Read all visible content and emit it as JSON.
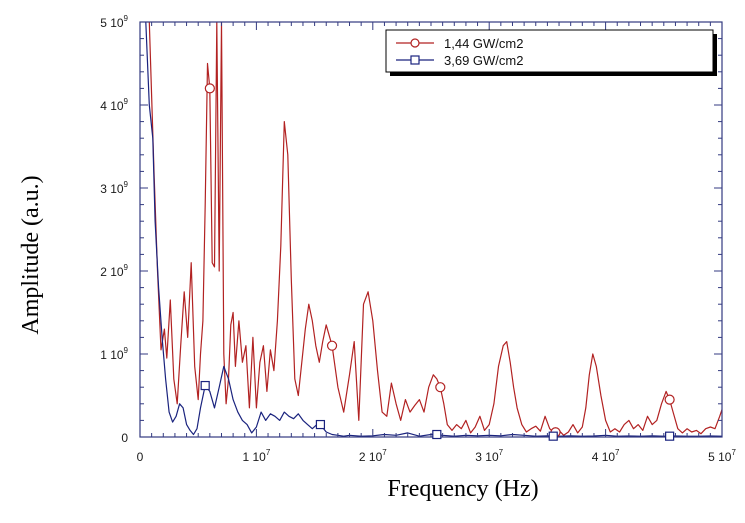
{
  "chart_data": {
    "type": "line",
    "xlabel": "Frequency (Hz)",
    "ylabel": "Amplitude  (a.u.)",
    "xlim": [
      0,
      50000000
    ],
    "ylim": [
      0,
      5000000000
    ],
    "x_ticks": [
      0,
      10000000,
      20000000,
      30000000,
      40000000,
      50000000
    ],
    "x_tick_labels": [
      {
        "base": "0",
        "exp": ""
      },
      {
        "base": "1 10",
        "exp": "7"
      },
      {
        "base": "2 10",
        "exp": "7"
      },
      {
        "base": "3 10",
        "exp": "7"
      },
      {
        "base": "4 10",
        "exp": "7"
      },
      {
        "base": "5 10",
        "exp": "7"
      }
    ],
    "y_ticks": [
      0,
      1000000000,
      2000000000,
      3000000000,
      4000000000,
      5000000000
    ],
    "y_tick_labels": [
      {
        "base": "0",
        "exp": ""
      },
      {
        "base": "1 10",
        "exp": "9"
      },
      {
        "base": "2 10",
        "exp": "9"
      },
      {
        "base": "3 10",
        "exp": "9"
      },
      {
        "base": "4 10",
        "exp": "9"
      },
      {
        "base": "5 10",
        "exp": "9"
      }
    ],
    "legend_position": "top-right",
    "grid": false,
    "series": [
      {
        "name": "1,44 GW/cm2",
        "color": "#b22222",
        "marker": "circle",
        "marker_x": [
          6000000,
          16500000,
          25800000,
          35700000,
          45500000
        ],
        "x": [
          800000,
          1200000,
          1500000,
          1800000,
          2100000,
          2300000,
          2600000,
          2900000,
          3200000,
          3500000,
          3800000,
          4100000,
          4400000,
          4700000,
          5000000,
          5200000,
          5400000,
          5600000,
          5800000,
          6000000,
          6200000,
          6400000,
          6600000,
          6800000,
          7000000,
          7200000,
          7400000,
          7600000,
          7800000,
          8000000,
          8200000,
          8500000,
          8800000,
          9100000,
          9400000,
          9700000,
          10000000,
          10300000,
          10600000,
          10900000,
          11200000,
          11500000,
          11800000,
          12100000,
          12400000,
          12700000,
          13000000,
          13300000,
          13600000,
          13900000,
          14200000,
          14500000,
          14800000,
          15100000,
          15400000,
          15700000,
          16000000,
          16500000,
          17000000,
          17500000,
          18000000,
          18400000,
          18800000,
          19200000,
          19600000,
          20000000,
          20400000,
          20800000,
          21200000,
          21600000,
          22000000,
          22400000,
          22800000,
          23200000,
          23600000,
          24000000,
          24400000,
          24800000,
          25200000,
          25500000,
          25800000,
          26100000,
          26400000,
          26800000,
          27200000,
          27600000,
          28000000,
          28400000,
          28800000,
          29200000,
          29600000,
          30000000,
          30400000,
          30800000,
          31200000,
          31500000,
          31800000,
          32100000,
          32400000,
          32800000,
          33200000,
          33600000,
          34000000,
          34400000,
          34800000,
          35200000,
          35600000,
          36000000,
          36400000,
          36800000,
          37200000,
          37600000,
          38000000,
          38300000,
          38600000,
          38900000,
          39200000,
          39600000,
          40000000,
          40400000,
          40800000,
          41200000,
          41600000,
          42000000,
          42400000,
          42800000,
          43200000,
          43600000,
          44000000,
          44400000,
          44800000,
          45200000,
          45500000,
          45800000,
          46200000,
          46600000,
          47000000,
          47400000,
          47800000,
          48200000,
          48600000,
          49000000,
          49400000,
          49800000,
          50000000
        ],
        "y": [
          5000000000,
          3200000000,
          2000000000,
          1050000000,
          1300000000,
          950000000,
          1650000000,
          700000000,
          400000000,
          1100000000,
          1750000000,
          1200000000,
          2100000000,
          850000000,
          450000000,
          1000000000,
          1400000000,
          2800000000,
          4500000000,
          4200000000,
          2100000000,
          2050000000,
          5000000000,
          2000000000,
          5000000000,
          1000000000,
          400000000,
          700000000,
          1350000000,
          1500000000,
          850000000,
          1400000000,
          900000000,
          1100000000,
          350000000,
          1200000000,
          350000000,
          900000000,
          1100000000,
          550000000,
          1050000000,
          800000000,
          1400000000,
          2300000000,
          3800000000,
          3400000000,
          1900000000,
          700000000,
          500000000,
          900000000,
          1300000000,
          1600000000,
          1400000000,
          1100000000,
          900000000,
          1150000000,
          1350000000,
          1100000000,
          600000000,
          300000000,
          750000000,
          1150000000,
          200000000,
          1600000000,
          1750000000,
          1400000000,
          800000000,
          300000000,
          250000000,
          650000000,
          400000000,
          200000000,
          450000000,
          300000000,
          380000000,
          450000000,
          300000000,
          600000000,
          750000000,
          700000000,
          600000000,
          400000000,
          150000000,
          80000000,
          150000000,
          100000000,
          200000000,
          50000000,
          120000000,
          250000000,
          80000000,
          150000000,
          400000000,
          850000000,
          1100000000,
          1150000000,
          900000000,
          600000000,
          350000000,
          150000000,
          60000000,
          100000000,
          130000000,
          70000000,
          250000000,
          100000000,
          50000000,
          80000000,
          20000000,
          60000000,
          150000000,
          50000000,
          120000000,
          350000000,
          750000000,
          1000000000,
          850000000,
          500000000,
          200000000,
          60000000,
          100000000,
          60000000,
          150000000,
          200000000,
          100000000,
          150000000,
          80000000,
          250000000,
          150000000,
          200000000,
          400000000,
          550000000,
          450000000,
          300000000,
          100000000,
          50000000,
          100000000,
          60000000,
          80000000,
          40000000,
          100000000,
          120000000,
          100000000,
          250000000,
          330000000
        ]
      },
      {
        "name": "3,69 GW/cm2",
        "color": "#1a237e",
        "marker": "square",
        "marker_x": [
          5600000,
          15500000,
          25500000,
          35500000,
          45500000
        ],
        "x": [
          500000,
          800000,
          1100000,
          1300000,
          1600000,
          1900000,
          2200000,
          2500000,
          2800000,
          3100000,
          3400000,
          3700000,
          4000000,
          4300000,
          4600000,
          4900000,
          5200000,
          5600000,
          6000000,
          6400000,
          6800000,
          7200000,
          7600000,
          8000000,
          8400000,
          8800000,
          9200000,
          9600000,
          10000000,
          10400000,
          10800000,
          11200000,
          11600000,
          12000000,
          12400000,
          12800000,
          13200000,
          13600000,
          14000000,
          14400000,
          14800000,
          15200000,
          15500000,
          16000000,
          16500000,
          17000000,
          17500000,
          18000000,
          19000000,
          20000000,
          21000000,
          22000000,
          23000000,
          24000000,
          25000000,
          25500000,
          26000000,
          27000000,
          28000000,
          29000000,
          30000000,
          31000000,
          32000000,
          33000000,
          34000000,
          35000000,
          35500000,
          36000000,
          37000000,
          38000000,
          39000000,
          40000000,
          41000000,
          42000000,
          43000000,
          44000000,
          45000000,
          45500000,
          46000000,
          47000000,
          48000000,
          49000000,
          50000000
        ],
        "y": [
          5000000000,
          4000000000,
          3600000000,
          2600000000,
          1800000000,
          1200000000,
          700000000,
          300000000,
          180000000,
          250000000,
          400000000,
          350000000,
          150000000,
          80000000,
          30000000,
          100000000,
          350000000,
          620000000,
          550000000,
          350000000,
          600000000,
          850000000,
          700000000,
          450000000,
          300000000,
          200000000,
          150000000,
          50000000,
          120000000,
          300000000,
          200000000,
          280000000,
          250000000,
          200000000,
          300000000,
          250000000,
          220000000,
          280000000,
          200000000,
          150000000,
          100000000,
          150000000,
          150000000,
          60000000,
          30000000,
          20000000,
          10000000,
          20000000,
          10000000,
          15000000,
          30000000,
          20000000,
          50000000,
          10000000,
          30000000,
          30000000,
          20000000,
          10000000,
          20000000,
          15000000,
          20000000,
          15000000,
          30000000,
          20000000,
          10000000,
          15000000,
          10000000,
          10000000,
          15000000,
          10000000,
          12000000,
          20000000,
          10000000,
          12000000,
          10000000,
          15000000,
          10000000,
          10000000,
          12000000,
          10000000,
          10000000,
          12000000,
          10000000
        ]
      }
    ]
  }
}
